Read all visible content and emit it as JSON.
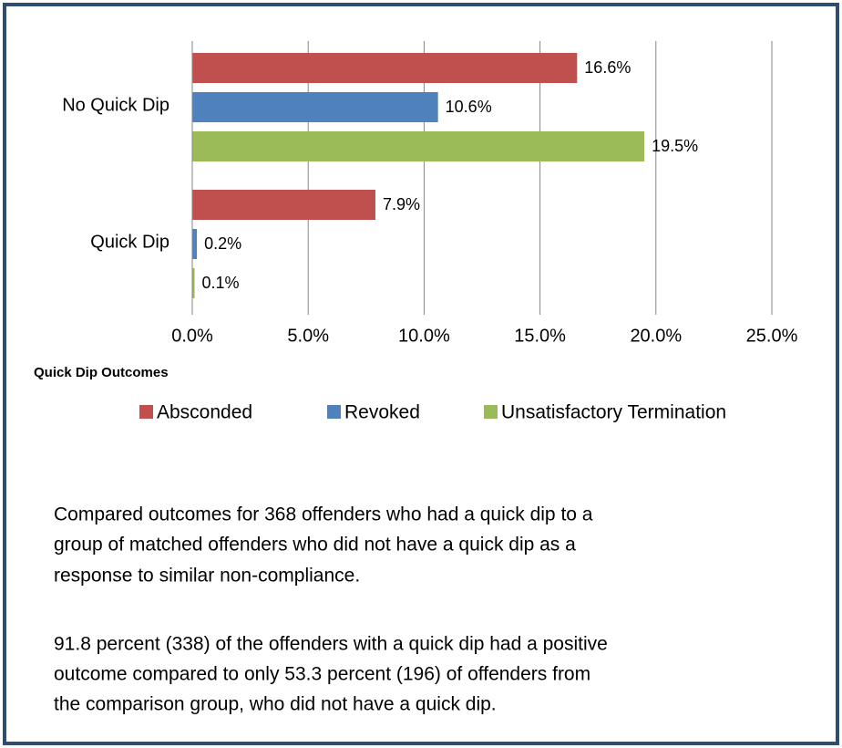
{
  "chart_data": {
    "type": "barh",
    "categories": [
      "No Quick Dip",
      "Quick Dip"
    ],
    "series": [
      {
        "name": "Absconded",
        "color": "#c0504d",
        "values": [
          16.6,
          7.9
        ],
        "value_labels": [
          "16.6%",
          "7.9%"
        ]
      },
      {
        "name": "Revoked",
        "color": "#4f81bd",
        "values": [
          10.6,
          0.2
        ],
        "value_labels": [
          "10.6%",
          "0.2%"
        ]
      },
      {
        "name": "Unsatisfactory Termination",
        "color": "#9bbb59",
        "values": [
          19.5,
          0.1
        ],
        "value_labels": [
          "19.5%",
          "0.1%"
        ]
      }
    ],
    "xlim": [
      0,
      25
    ],
    "xticks": [
      {
        "value": 0,
        "label": "0.0%"
      },
      {
        "value": 5,
        "label": "5.0%"
      },
      {
        "value": 10,
        "label": "10.0%"
      },
      {
        "value": 15,
        "label": "15.0%"
      },
      {
        "value": 20,
        "label": "20.0%"
      },
      {
        "value": 25,
        "label": "25.0%"
      }
    ],
    "grid": true,
    "legend_title": "Quick Dip Outcomes",
    "legend": "bottom"
  },
  "paragraphs": [
    [
      "Compared outcomes for 368 offenders who had a quick dip to a",
      "group of matched offenders who did not have a quick dip as a",
      "response to similar non-compliance."
    ],
    [
      "91.8 percent  (338) of the offenders with a quick dip had a positive",
      "outcome compared to only 53.3 percent (196) of offenders from",
      "the comparison group, who did not have a quick dip."
    ]
  ]
}
